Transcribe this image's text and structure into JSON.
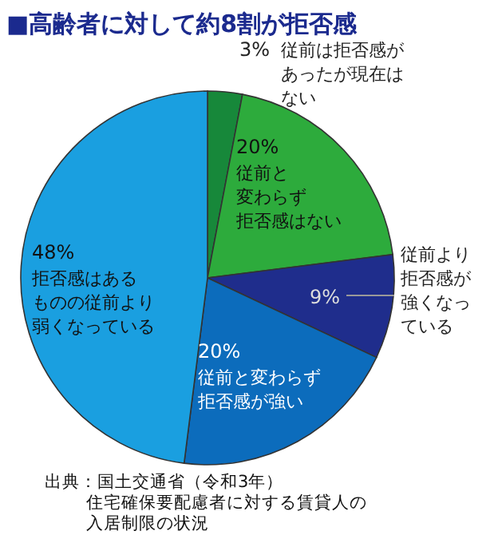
{
  "chart_data": {
    "type": "pie",
    "title": "■高齢者に対して約8割が拒否感",
    "categories": [
      "従前は拒否感があったが現在はない",
      "従前と変わらず拒否感はない",
      "従前より拒否感が強くなっている",
      "従前と変わらず拒否感が強い",
      "拒否感はあるものの従前より弱くなっている"
    ],
    "values": [
      3,
      20,
      9,
      20,
      48
    ],
    "colors": [
      "#17883a",
      "#2dab3c",
      "#1f2d8c",
      "#0c6cbc",
      "#1a9fe0"
    ],
    "value_labels": [
      "3%",
      "20%",
      "9%",
      "20%",
      "48%"
    ],
    "annotations": [
      "出典：国土交通省（令和3年）住宅確保要配慮者に対する賃貸人の入居制限の状況"
    ]
  }
}
